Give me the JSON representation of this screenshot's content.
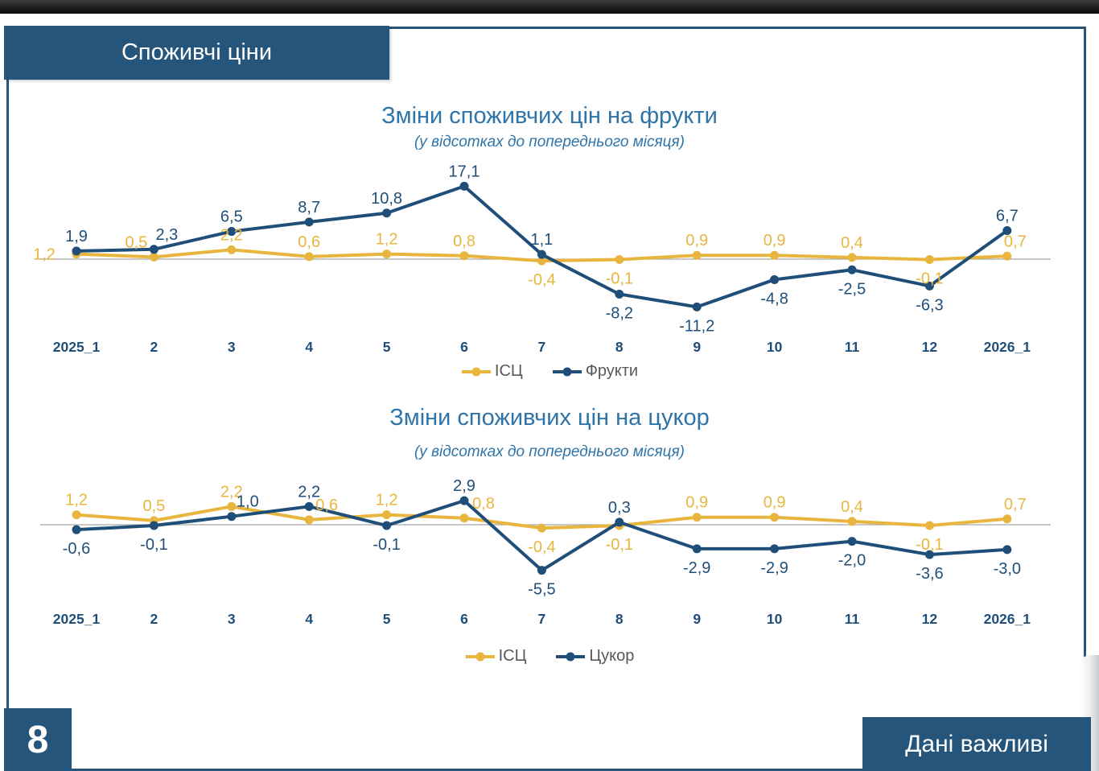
{
  "page": {
    "badge": "Споживчі ціни",
    "page_number": "8",
    "footer": "Дані важливі"
  },
  "colors": {
    "accent_blue": "#1F4E79",
    "accent_yellow": "#E8B63E",
    "title_blue": "#2E74A8",
    "badge_blue": "#26557C",
    "legend_text": "#595959",
    "zero_line": "#A6A6A6"
  },
  "chart_data": [
    {
      "type": "line",
      "title": "Зміни споживчих цін на фрукти",
      "subtitle": "(у відсотках до попереднього місяця)",
      "categories": [
        "2025_1",
        "2",
        "3",
        "4",
        "5",
        "6",
        "7",
        "8",
        "9",
        "10",
        "11",
        "12",
        "2026_1"
      ],
      "series": [
        {
          "name": "ІСЦ",
          "color": "#E8B63E",
          "values": [
            1.2,
            0.5,
            2.2,
            0.6,
            1.2,
            0.8,
            -0.4,
            -0.1,
            0.9,
            0.9,
            0.4,
            -0.1,
            0.7
          ]
        },
        {
          "name": "Фрукти",
          "color": "#1F4E79",
          "values": [
            1.9,
            2.3,
            6.5,
            8.7,
            10.8,
            17.1,
            1.1,
            -8.2,
            -11.2,
            -4.8,
            -2.5,
            -6.3,
            6.7
          ]
        }
      ],
      "xlabel": "",
      "ylabel": "",
      "ylim": [
        -13,
        19
      ],
      "grid": false,
      "legend_position": "bottom",
      "number_format": "one-decimal-comma"
    },
    {
      "type": "line",
      "title": "Зміни споживчих цін на цукор",
      "subtitle": "(у відсотках до попереднього місяця)",
      "categories": [
        "2025_1",
        "2",
        "3",
        "4",
        "5",
        "6",
        "7",
        "8",
        "9",
        "10",
        "11",
        "12",
        "2026_1"
      ],
      "series": [
        {
          "name": "ІСЦ",
          "color": "#E8B63E",
          "values": [
            1.2,
            0.5,
            2.2,
            0.6,
            1.2,
            0.8,
            -0.4,
            -0.1,
            0.9,
            0.9,
            0.4,
            -0.1,
            0.7
          ]
        },
        {
          "name": "Цукор",
          "color": "#1F4E79",
          "values": [
            -0.6,
            -0.1,
            1.0,
            2.2,
            -0.1,
            2.9,
            -5.5,
            0.3,
            -2.9,
            -2.9,
            -2.0,
            -3.6,
            -3.0
          ]
        }
      ],
      "xlabel": "",
      "ylabel": "",
      "ylim": [
        -7,
        4
      ],
      "grid": false,
      "legend_position": "bottom",
      "number_format": "one-decimal-comma"
    }
  ]
}
